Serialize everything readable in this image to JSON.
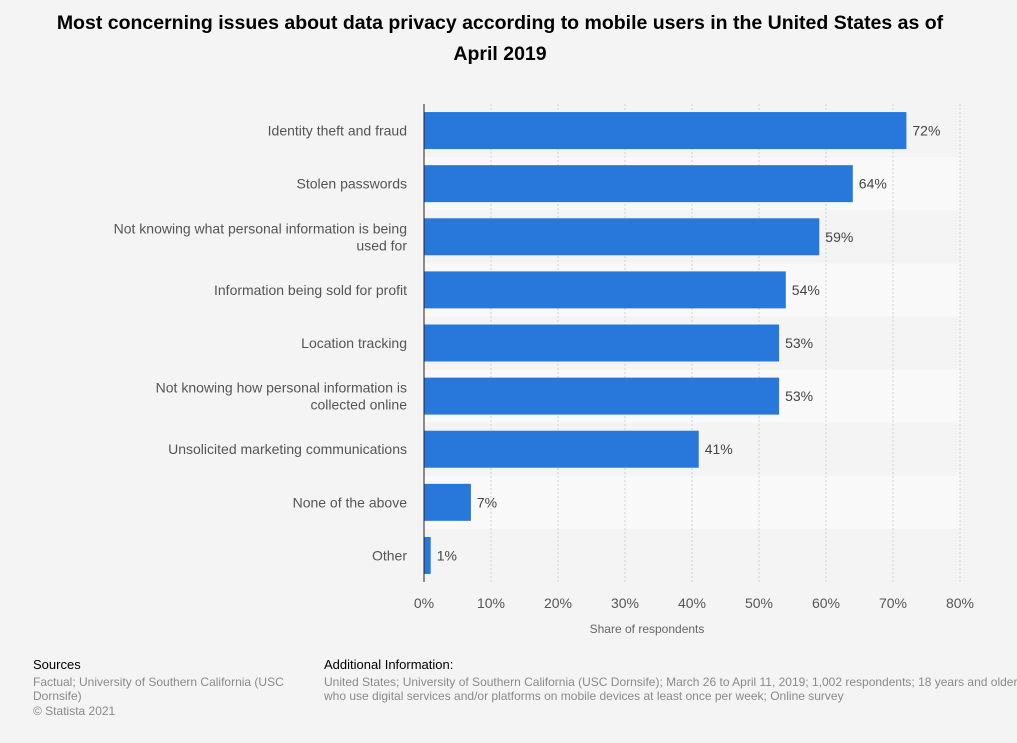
{
  "chart_data": {
    "type": "bar",
    "orientation": "horizontal",
    "title": "Most concerning issues about data privacy according to mobile users in the United States as of April 2019",
    "categories": [
      [
        "Identity theft and fraud"
      ],
      [
        "Stolen passwords"
      ],
      [
        "Not knowing what personal information is being",
        "used for"
      ],
      [
        "Information being sold for profit"
      ],
      [
        "Location tracking"
      ],
      [
        "Not knowing how personal information is",
        "collected online"
      ],
      [
        "Unsolicited marketing communications"
      ],
      [
        "None of the above"
      ],
      [
        "Other"
      ]
    ],
    "values": [
      72,
      64,
      59,
      54,
      53,
      53,
      41,
      7,
      1
    ],
    "value_labels": [
      "72%",
      "64%",
      "59%",
      "54%",
      "53%",
      "53%",
      "41%",
      "7%",
      "1%"
    ],
    "xlabel": "Share of respondents",
    "ylabel": "",
    "xlim": [
      0,
      80
    ],
    "ticks": [
      0,
      10,
      20,
      30,
      40,
      50,
      60,
      70,
      80
    ],
    "tick_labels": [
      "0%",
      "10%",
      "20%",
      "30%",
      "40%",
      "50%",
      "60%",
      "70%",
      "80%"
    ],
    "grid": true,
    "legend": "none",
    "colors": {
      "bar": "#2878dc",
      "band": "#f9f9f9",
      "grid": "#d0d0d0",
      "axis": "#222222"
    }
  },
  "footer": {
    "sources_heading": "Sources",
    "sources_lines": [
      "Factual; University of Southern California (USC",
      "Dornsife)",
      "© Statista 2021"
    ],
    "additional_heading": "Additional Information:",
    "additional_lines": [
      "United States; University of Southern California (USC Dornsife); March 26 to April 11, 2019; 1,002 respondents; 18 years and older",
      "who use digital services and/or platforms on mobile devices at least once per week; Online survey"
    ]
  }
}
